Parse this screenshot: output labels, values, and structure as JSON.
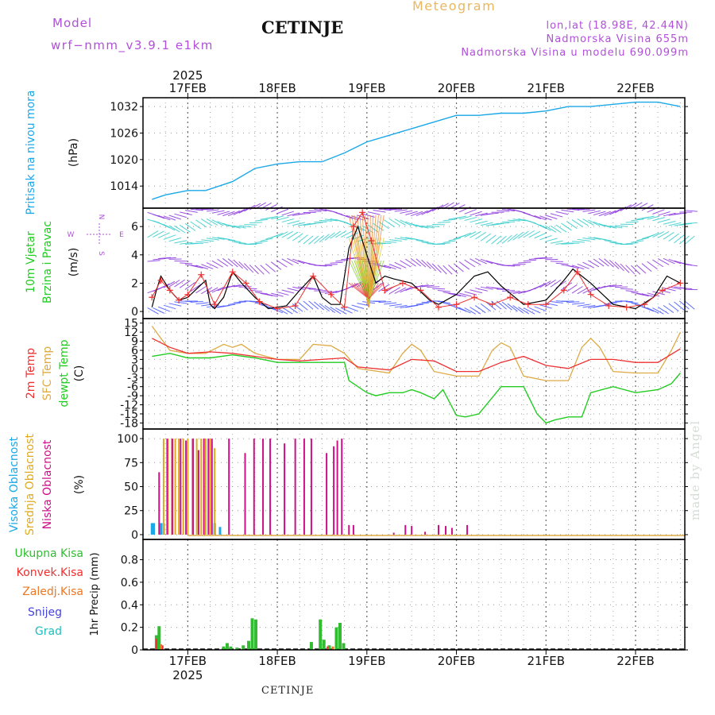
{
  "header": {
    "model_label": "Model",
    "model_version": "wrf−nmm_v3.9.1  e1km",
    "station": "CETINJE",
    "product": "Meteogram",
    "lonlat": "lon,lat (18.98E, 42.44N)",
    "elevation": "Nadmorska Visina 655m",
    "model_elevation": "Nadmorska Visina u modelu 690.099m"
  },
  "footer": {
    "station": "CETINJE",
    "credit": "made by Angel"
  },
  "time_axis": {
    "year": "2025",
    "day_labels": [
      "17FEB",
      "18FEB",
      "19FEB",
      "20FEB",
      "21FEB",
      "22FEB"
    ]
  },
  "colors": {
    "pressure": "#1aa8e8",
    "wind_speed": "#000000",
    "wind_gust": "#ee3030",
    "temp2m": "#ee3030",
    "sfc_temp": "#ddaa44",
    "dewpoint": "#22cc22",
    "high_cloud": "#1aa8e8",
    "mid_cloud": "#ddaa22",
    "low_cloud": "#cc1188",
    "total_precip": "#33bb33",
    "conv_precip": "#ee3030",
    "frozen_precip": "#ee7722",
    "snow": "#4444dd",
    "hail": "#22bbbb"
  },
  "chart_data": [
    {
      "type": "line",
      "panel": "pressure",
      "ylabel": [
        "Pritisak na nivou mora",
        "(hPa)"
      ],
      "yticks": [
        "1014",
        "1020",
        "1026",
        "1032"
      ],
      "ylim": [
        1009,
        1034
      ],
      "grid": true,
      "x_unit": "day of February 2025",
      "series": [
        {
          "name": "Pritisak na nivou mora",
          "x": [
            16.6,
            16.75,
            17.0,
            17.2,
            17.5,
            17.75,
            18.0,
            18.25,
            18.5,
            18.75,
            19.0,
            19.25,
            19.5,
            19.75,
            20.0,
            20.25,
            20.5,
            20.75,
            21.0,
            21.25,
            21.5,
            21.75,
            22.0,
            22.25,
            22.5
          ],
          "values": [
            1011,
            1012,
            1013,
            1013,
            1015,
            1018,
            1019,
            1019.5,
            1019.5,
            1021.5,
            1024,
            1025.5,
            1027,
            1028.5,
            1030,
            1030,
            1030.5,
            1030.5,
            1031,
            1032,
            1032,
            1032.5,
            1033,
            1033,
            1032
          ]
        }
      ]
    },
    {
      "type": "line",
      "panel": "wind",
      "ylabel": [
        "10m Vjetar",
        "Brzina i Pravac",
        "(m/s)"
      ],
      "yticks": [
        "0",
        "2",
        "4",
        "6"
      ],
      "ylim": [
        -0.5,
        7.3
      ],
      "grid": true,
      "compass": {
        "north": "N",
        "south": "S",
        "east": "E",
        "west": "W"
      },
      "series": [
        {
          "name": "speed",
          "x": [
            16.6,
            16.65,
            16.7,
            16.8,
            16.9,
            17.0,
            17.1,
            17.2,
            17.25,
            17.3,
            17.4,
            17.5,
            17.6,
            17.75,
            17.9,
            18.1,
            18.25,
            18.4,
            18.5,
            18.6,
            18.7,
            18.8,
            18.9,
            19.0,
            19.1,
            19.2,
            19.3,
            19.5,
            19.7,
            19.8,
            20.0,
            20.2,
            20.35,
            20.5,
            20.75,
            21.0,
            21.2,
            21.3,
            21.5,
            21.75,
            22.0,
            22.2,
            22.35,
            22.5
          ],
          "values": [
            0.3,
            1.5,
            2.5,
            1.5,
            0.8,
            1.0,
            1.6,
            2.2,
            0.5,
            0.2,
            1.0,
            2.8,
            2.0,
            1.0,
            0.2,
            0.4,
            1.5,
            2.5,
            1.0,
            0.5,
            0.5,
            4.5,
            6.0,
            4.0,
            2.0,
            2.5,
            2.3,
            2.0,
            0.8,
            0.5,
            1.2,
            2.5,
            2.8,
            1.8,
            0.5,
            0.8,
            2.2,
            3.0,
            2.0,
            0.5,
            0.2,
            1.0,
            2.5,
            2.0
          ]
        },
        {
          "name": "gust",
          "x": [
            16.6,
            16.7,
            16.8,
            16.9,
            17.0,
            17.15,
            17.3,
            17.5,
            17.65,
            17.8,
            18.0,
            18.2,
            18.4,
            18.6,
            18.75,
            18.85,
            18.95,
            19.05,
            19.2,
            19.4,
            19.6,
            19.8,
            20.0,
            20.2,
            20.4,
            20.6,
            20.8,
            21.0,
            21.2,
            21.35,
            21.5,
            21.7,
            21.9,
            22.1,
            22.3,
            22.5
          ],
          "values": [
            1.0,
            2.2,
            1.5,
            0.8,
            1.2,
            2.6,
            0.5,
            2.8,
            2.0,
            0.7,
            0.2,
            0.4,
            2.5,
            1.2,
            0.3,
            6.0,
            7.0,
            5.0,
            1.5,
            2.0,
            1.5,
            0.3,
            0.5,
            1.0,
            0.5,
            1.0,
            0.5,
            0.5,
            1.5,
            2.8,
            1.2,
            0.4,
            0.3,
            0.5,
            1.5,
            2.0
          ]
        }
      ]
    },
    {
      "type": "line",
      "panel": "temperature",
      "ylabel": [
        "2m Temp",
        "SFC Temp",
        "dewpt Temp",
        "(C)"
      ],
      "yticks": [
        "15",
        "12",
        "9",
        "6",
        "3",
        "0",
        "-3",
        "-6",
        "-9",
        "-12",
        "-15",
        "-18"
      ],
      "ylim": [
        -20,
        16.5
      ],
      "grid": true,
      "series": [
        {
          "name": "2m Temp",
          "x": [
            16.6,
            16.8,
            17.0,
            17.25,
            17.5,
            17.75,
            18.0,
            18.25,
            18.5,
            18.75,
            18.9,
            19.25,
            19.5,
            19.75,
            20.0,
            20.25,
            20.5,
            20.75,
            21.0,
            21.25,
            21.5,
            21.75,
            22.0,
            22.25,
            22.5
          ],
          "values": [
            10,
            7,
            5,
            5.5,
            5,
            4,
            3,
            2.5,
            3,
            3.5,
            0.5,
            -0.5,
            3,
            2.5,
            -1,
            -1,
            2,
            4,
            1,
            0,
            3,
            3,
            2,
            2,
            6.5
          ]
        },
        {
          "name": "SFC Temp",
          "x": [
            16.6,
            16.7,
            16.8,
            17.0,
            17.2,
            17.4,
            17.5,
            17.6,
            17.75,
            18.0,
            18.25,
            18.4,
            18.6,
            18.75,
            18.9,
            19.25,
            19.4,
            19.5,
            19.6,
            19.75,
            20.0,
            20.25,
            20.4,
            20.5,
            20.6,
            20.75,
            21.0,
            21.25,
            21.4,
            21.5,
            21.6,
            21.75,
            22.0,
            22.25,
            22.4,
            22.5
          ],
          "values": [
            14,
            10,
            6,
            5,
            5,
            8,
            7,
            8,
            5,
            3,
            3,
            8,
            7.5,
            5,
            0,
            -1.5,
            5,
            8,
            6,
            -1,
            -2.5,
            -2.5,
            6,
            8.5,
            7,
            -2.5,
            -4,
            -4,
            7,
            10,
            7,
            -1,
            -1.5,
            -1.5,
            6,
            12
          ]
        },
        {
          "name": "dewpt Temp",
          "x": [
            16.6,
            16.8,
            17.0,
            17.25,
            17.5,
            17.75,
            18.0,
            18.25,
            18.5,
            18.75,
            18.8,
            19.0,
            19.1,
            19.25,
            19.4,
            19.5,
            19.6,
            19.75,
            19.85,
            20.0,
            20.1,
            20.25,
            20.5,
            20.75,
            20.9,
            21.0,
            21.1,
            21.25,
            21.4,
            21.5,
            21.75,
            22.0,
            22.25,
            22.4,
            22.5
          ],
          "values": [
            4,
            5,
            3.5,
            3.5,
            4.5,
            3.5,
            2,
            2,
            2,
            2,
            -4,
            -8,
            -9,
            -8,
            -8,
            -7,
            -8,
            -10,
            -7,
            -15.5,
            -16,
            -15,
            -6,
            -6,
            -15,
            -18,
            -17,
            -16,
            -16,
            -8,
            -6,
            -8,
            -7,
            -5,
            -1.5
          ]
        }
      ]
    },
    {
      "type": "bar",
      "panel": "cloud",
      "ylabel": [
        "Visoka Oblacnost",
        "Srednja Oblacnost",
        "Niska Oblacnost",
        "(%)"
      ],
      "yticks": [
        "0",
        "25",
        "50",
        "75",
        "100"
      ],
      "ylim": [
        -5,
        110
      ],
      "grid": true,
      "series": [
        {
          "name": "Visoka Oblacnost",
          "x": [
            16.6,
            16.62,
            16.7,
            16.73,
            17.3,
            17.36
          ],
          "values": [
            12,
            12,
            12,
            12,
            12,
            8
          ]
        },
        {
          "name": "Srednja Oblacnost",
          "x": [
            16.73,
            16.78,
            16.82,
            16.86,
            16.9,
            16.95,
            17.0,
            17.05,
            17.1,
            17.15,
            17.2,
            17.25,
            17.3
          ],
          "values": [
            100,
            100,
            100,
            100,
            100,
            100,
            100,
            100,
            100,
            100,
            100,
            100,
            90
          ]
        },
        {
          "name": "Niska Oblacnost",
          "x": [
            16.68,
            16.77,
            16.83,
            16.92,
            16.98,
            17.06,
            17.12,
            17.18,
            17.23,
            17.27,
            17.46,
            17.64,
            17.74,
            17.84,
            17.92,
            18.08,
            18.2,
            18.3,
            18.38,
            18.55,
            18.63,
            18.67,
            18.72,
            18.8,
            18.85,
            19.3,
            19.43,
            19.5,
            19.65,
            19.8,
            19.88,
            19.95,
            20.12
          ],
          "values": [
            65,
            100,
            100,
            100,
            98,
            100,
            88,
            100,
            100,
            100,
            100,
            85,
            100,
            100,
            100,
            95,
            100,
            100,
            100,
            85,
            92,
            98,
            100,
            10,
            10,
            2,
            10,
            9,
            3,
            10,
            9,
            7,
            10
          ]
        }
      ]
    },
    {
      "type": "bar",
      "panel": "precip",
      "ylabel": [
        "1hr Precip (mm)"
      ],
      "legend": [
        "Ukupna Kisa",
        "Konvek.Kisa",
        "Zaledj.Kisa",
        "Snijeg",
        "Grad"
      ],
      "yticks": [
        "0",
        "0.2",
        "0.4",
        "0.6",
        "0.8"
      ],
      "ylim": [
        0,
        0.98
      ],
      "grid": true,
      "series": [
        {
          "name": "Ukupna Kisa",
          "x": [
            16.65,
            16.68,
            17.4,
            17.44,
            17.48,
            17.55,
            17.62,
            17.68,
            17.72,
            17.76,
            18.38,
            18.48,
            18.52,
            18.58,
            18.66,
            18.7,
            18.74
          ],
          "values": [
            0.13,
            0.21,
            0.03,
            0.06,
            0.03,
            0.02,
            0.04,
            0.08,
            0.28,
            0.27,
            0.07,
            0.27,
            0.09,
            0.04,
            0.2,
            0.24,
            0.06
          ]
        },
        {
          "name": "Konvek.Kisa",
          "x": [
            16.65,
            16.72,
            18.56
          ],
          "values": [
            0.1,
            0.04,
            0.03
          ]
        },
        {
          "name": "Zaledj.Kisa",
          "x": [
            16.7,
            18.62
          ],
          "values": [
            0.05,
            0.03
          ]
        }
      ]
    }
  ]
}
